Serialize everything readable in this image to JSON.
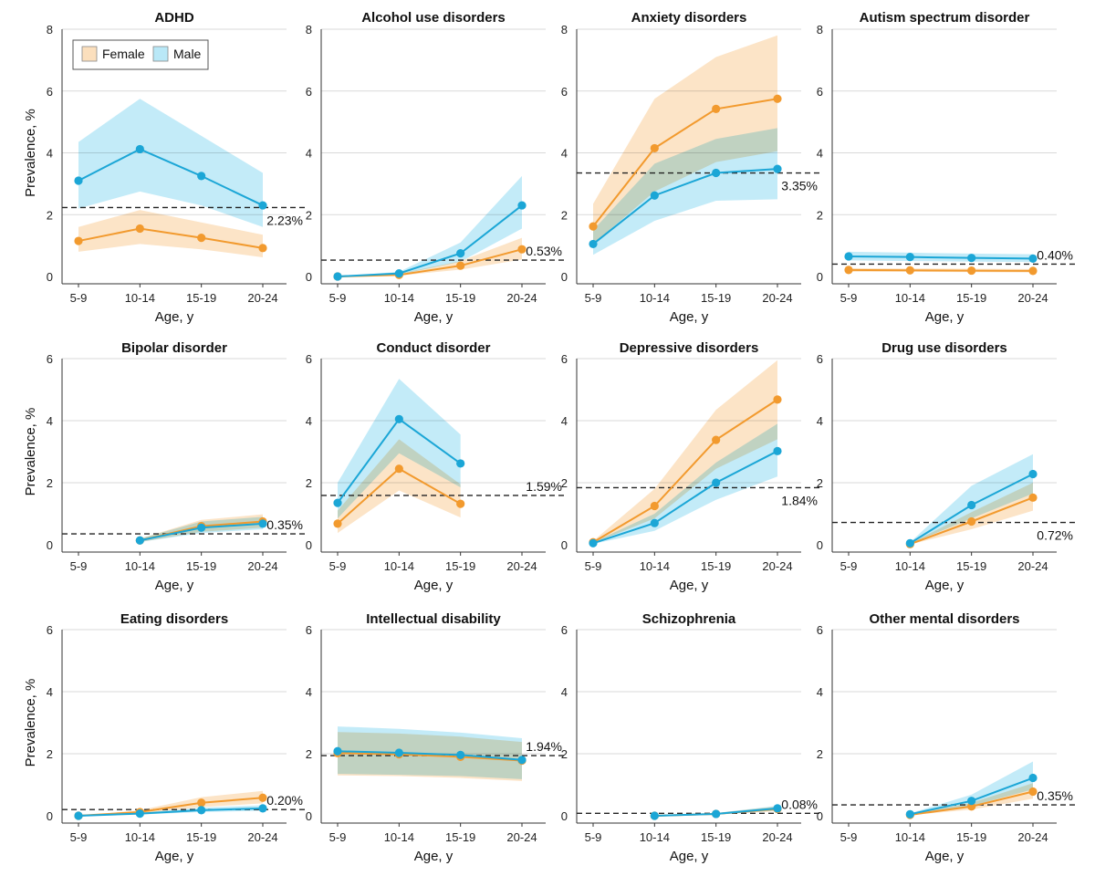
{
  "figure": {
    "legend": [
      {
        "name": "Female",
        "color": "#f29a2e",
        "band": "#fbdfbd"
      },
      {
        "name": "Male",
        "color": "#1ba6d6",
        "band": "#b9e8f7"
      }
    ],
    "ylabel": "Prevalence, %",
    "xlabel": "Age, y"
  },
  "chart_data": [
    {
      "type": "line",
      "title": "ADHD",
      "categories": [
        "5-9",
        "10-14",
        "15-19",
        "20-24"
      ],
      "ylim": [
        0,
        8
      ],
      "yticks": [
        0,
        2,
        4,
        6,
        8
      ],
      "xlabel": "Age, y",
      "ylabel": "Prevalence, %",
      "reference": {
        "value": 2.23,
        "label": "2.23%",
        "label_pos": "below"
      },
      "series": [
        {
          "name": "Female",
          "values": [
            1.15,
            1.55,
            1.25,
            0.92
          ],
          "lower": [
            0.8,
            1.05,
            0.88,
            0.62
          ],
          "upper": [
            1.6,
            2.15,
            1.75,
            1.35
          ]
        },
        {
          "name": "Male",
          "values": [
            3.1,
            4.12,
            3.25,
            2.3
          ],
          "lower": [
            2.2,
            2.75,
            2.3,
            1.6
          ],
          "upper": [
            4.35,
            5.75,
            4.55,
            3.35
          ]
        }
      ]
    },
    {
      "type": "line",
      "title": "Alcohol use disorders",
      "categories": [
        "5-9",
        "10-14",
        "15-19",
        "20-24"
      ],
      "ylim": [
        0,
        8
      ],
      "yticks": [
        0,
        2,
        4,
        6,
        8
      ],
      "xlabel": "Age, y",
      "reference": {
        "value": 0.53,
        "label": "0.53%",
        "label_pos": "above"
      },
      "series": [
        {
          "name": "Female",
          "values": [
            0.0,
            0.05,
            0.35,
            0.88
          ],
          "lower": [
            0.0,
            0.03,
            0.22,
            0.55
          ],
          "upper": [
            0.0,
            0.09,
            0.5,
            1.25
          ]
        },
        {
          "name": "Male",
          "values": [
            0.0,
            0.1,
            0.75,
            2.3
          ],
          "lower": [
            0.0,
            0.06,
            0.48,
            1.55
          ],
          "upper": [
            0.0,
            0.15,
            1.1,
            3.25
          ]
        }
      ]
    },
    {
      "type": "line",
      "title": "Anxiety disorders",
      "categories": [
        "5-9",
        "10-14",
        "15-19",
        "20-24"
      ],
      "ylim": [
        0,
        8
      ],
      "yticks": [
        0,
        2,
        4,
        6,
        8
      ],
      "xlabel": "Age, y",
      "reference": {
        "value": 3.35,
        "label": "3.35%",
        "label_pos": "below"
      },
      "series": [
        {
          "name": "Female",
          "values": [
            1.62,
            4.15,
            5.42,
            5.75
          ],
          "lower": [
            1.05,
            2.75,
            3.7,
            4.05
          ],
          "upper": [
            2.35,
            5.75,
            7.1,
            7.8
          ]
        },
        {
          "name": "Male",
          "values": [
            1.05,
            2.62,
            3.35,
            3.48
          ],
          "lower": [
            0.7,
            1.8,
            2.45,
            2.5
          ],
          "upper": [
            1.5,
            3.65,
            4.45,
            4.8
          ]
        }
      ]
    },
    {
      "type": "line",
      "title": "Autism spectrum disorder",
      "categories": [
        "5-9",
        "10-14",
        "15-19",
        "20-24"
      ],
      "ylim": [
        0,
        8
      ],
      "yticks": [
        0,
        2,
        4,
        6,
        8
      ],
      "xlabel": "Age, y",
      "reference": {
        "value": 0.4,
        "label": "0.40%",
        "label_pos": "above"
      },
      "series": [
        {
          "name": "Female",
          "values": [
            0.21,
            0.2,
            0.19,
            0.18
          ],
          "lower": [
            0.15,
            0.15,
            0.14,
            0.13
          ],
          "upper": [
            0.27,
            0.26,
            0.25,
            0.24
          ]
        },
        {
          "name": "Male",
          "values": [
            0.65,
            0.63,
            0.6,
            0.58
          ],
          "lower": [
            0.52,
            0.5,
            0.48,
            0.47
          ],
          "upper": [
            0.8,
            0.77,
            0.74,
            0.72
          ]
        }
      ]
    },
    {
      "type": "line",
      "title": "Bipolar disorder",
      "categories": [
        "5-9",
        "10-14",
        "15-19",
        "20-24"
      ],
      "ylim": [
        0,
        6
      ],
      "yticks": [
        0,
        2,
        4,
        6
      ],
      "xlabel": "Age, y",
      "ylabel": "Prevalence, %",
      "reference": {
        "value": 0.35,
        "label": "0.35%",
        "label_pos": "above"
      },
      "series": [
        {
          "name": "Female",
          "values": [
            null,
            0.14,
            0.6,
            0.75
          ],
          "lower": [
            null,
            0.09,
            0.42,
            0.55
          ],
          "upper": [
            null,
            0.2,
            0.8,
            0.98
          ]
        },
        {
          "name": "Male",
          "values": [
            null,
            0.14,
            0.55,
            0.68
          ],
          "lower": [
            null,
            0.09,
            0.38,
            0.5
          ],
          "upper": [
            null,
            0.2,
            0.75,
            0.9
          ]
        }
      ]
    },
    {
      "type": "line",
      "title": "Conduct disorder",
      "categories": [
        "5-9",
        "10-14",
        "15-19",
        "20-24"
      ],
      "ylim": [
        0,
        6
      ],
      "yticks": [
        0,
        2,
        4,
        6
      ],
      "xlabel": "Age, y",
      "reference": {
        "value": 1.59,
        "label": "1.59%",
        "label_pos": "above"
      },
      "series": [
        {
          "name": "Female",
          "values": [
            0.68,
            2.45,
            1.32,
            null
          ],
          "lower": [
            0.38,
            1.75,
            0.88,
            null
          ],
          "upper": [
            1.1,
            3.4,
            1.95,
            null
          ]
        },
        {
          "name": "Male",
          "values": [
            1.35,
            4.05,
            2.62,
            null
          ],
          "lower": [
            0.85,
            2.95,
            1.85,
            null
          ],
          "upper": [
            2.0,
            5.35,
            3.55,
            null
          ]
        }
      ]
    },
    {
      "type": "line",
      "title": "Depressive disorders",
      "categories": [
        "5-9",
        "10-14",
        "15-19",
        "20-24"
      ],
      "ylim": [
        0,
        6
      ],
      "yticks": [
        0,
        2,
        4,
        6
      ],
      "xlabel": "Age, y",
      "reference": {
        "value": 1.84,
        "label": "1.84%",
        "label_pos": "below"
      },
      "series": [
        {
          "name": "Female",
          "values": [
            0.08,
            1.25,
            3.38,
            4.68
          ],
          "lower": [
            0.05,
            0.85,
            2.45,
            3.4
          ],
          "upper": [
            0.12,
            1.8,
            4.35,
            5.95
          ]
        },
        {
          "name": "Male",
          "values": [
            0.05,
            0.7,
            2.0,
            3.02
          ],
          "lower": [
            0.03,
            0.45,
            1.45,
            2.2
          ],
          "upper": [
            0.08,
            1.0,
            2.65,
            3.9
          ]
        }
      ]
    },
    {
      "type": "line",
      "title": "Drug use disorders",
      "categories": [
        "5-9",
        "10-14",
        "15-19",
        "20-24"
      ],
      "ylim": [
        0,
        6
      ],
      "yticks": [
        0,
        2,
        4,
        6
      ],
      "xlabel": "Age, y",
      "reference": {
        "value": 0.72,
        "label": "0.72%",
        "label_pos": "below"
      },
      "series": [
        {
          "name": "Female",
          "values": [
            null,
            0.02,
            0.75,
            1.52
          ],
          "lower": [
            null,
            0.01,
            0.5,
            1.1
          ],
          "upper": [
            null,
            0.04,
            1.05,
            2.0
          ]
        },
        {
          "name": "Male",
          "values": [
            null,
            0.05,
            1.28,
            2.28
          ],
          "lower": [
            null,
            0.03,
            0.85,
            1.65
          ],
          "upper": [
            null,
            0.08,
            1.9,
            2.92
          ]
        }
      ]
    },
    {
      "type": "line",
      "title": "Eating disorders",
      "categories": [
        "5-9",
        "10-14",
        "15-19",
        "20-24"
      ],
      "ylim": [
        0,
        6
      ],
      "yticks": [
        0,
        2,
        4,
        6
      ],
      "xlabel": "Age, y",
      "ylabel": "Prevalence, %",
      "reference": {
        "value": 0.2,
        "label": "0.20%",
        "label_pos": "above"
      },
      "series": [
        {
          "name": "Female",
          "values": [
            0.0,
            0.12,
            0.42,
            0.58
          ],
          "lower": [
            0.0,
            0.08,
            0.28,
            0.4
          ],
          "upper": [
            0.0,
            0.18,
            0.6,
            0.8
          ]
        },
        {
          "name": "Male",
          "values": [
            0.0,
            0.07,
            0.18,
            0.24
          ],
          "lower": [
            0.0,
            0.04,
            0.12,
            0.16
          ],
          "upper": [
            0.0,
            0.1,
            0.26,
            0.34
          ]
        }
      ]
    },
    {
      "type": "line",
      "title": "Intellectual disability",
      "categories": [
        "5-9",
        "10-14",
        "15-19",
        "20-24"
      ],
      "ylim": [
        0,
        6
      ],
      "yticks": [
        0,
        2,
        4,
        6
      ],
      "xlabel": "Age, y",
      "reference": {
        "value": 1.94,
        "label": "1.94%",
        "label_pos": "above"
      },
      "series": [
        {
          "name": "Female",
          "values": [
            2.02,
            1.98,
            1.9,
            1.78
          ],
          "lower": [
            1.3,
            1.28,
            1.22,
            1.12
          ],
          "upper": [
            2.7,
            2.65,
            2.55,
            2.38
          ]
        },
        {
          "name": "Male",
          "values": [
            2.08,
            2.03,
            1.96,
            1.8
          ],
          "lower": [
            1.35,
            1.32,
            1.28,
            1.18
          ],
          "upper": [
            2.88,
            2.8,
            2.68,
            2.5
          ]
        }
      ]
    },
    {
      "type": "line",
      "title": "Schizophrenia",
      "categories": [
        "5-9",
        "10-14",
        "15-19",
        "20-24"
      ],
      "ylim": [
        0,
        6
      ],
      "yticks": [
        0,
        2,
        4,
        6
      ],
      "xlabel": "Age, y",
      "reference": {
        "value": 0.08,
        "label": "0.08%",
        "label_pos": "above"
      },
      "series": [
        {
          "name": "Female",
          "values": [
            null,
            0.0,
            0.06,
            0.22
          ],
          "lower": [
            null,
            0.0,
            0.04,
            0.15
          ],
          "upper": [
            null,
            0.0,
            0.09,
            0.3
          ]
        },
        {
          "name": "Male",
          "values": [
            null,
            0.0,
            0.06,
            0.24
          ],
          "lower": [
            null,
            0.0,
            0.04,
            0.17
          ],
          "upper": [
            null,
            0.0,
            0.09,
            0.32
          ]
        }
      ]
    },
    {
      "type": "line",
      "title": "Other mental disorders",
      "categories": [
        "5-9",
        "10-14",
        "15-19",
        "20-24"
      ],
      "ylim": [
        0,
        6
      ],
      "yticks": [
        0,
        2,
        4,
        6
      ],
      "xlabel": "Age, y",
      "reference": {
        "value": 0.35,
        "label": "0.35%",
        "label_pos": "above"
      },
      "series": [
        {
          "name": "Female",
          "values": [
            null,
            0.03,
            0.3,
            0.78
          ],
          "lower": [
            null,
            0.02,
            0.2,
            0.55
          ],
          "upper": [
            null,
            0.05,
            0.42,
            1.05
          ]
        },
        {
          "name": "Male",
          "values": [
            null,
            0.05,
            0.48,
            1.22
          ],
          "lower": [
            null,
            0.03,
            0.32,
            0.85
          ],
          "upper": [
            null,
            0.08,
            0.68,
            1.75
          ]
        }
      ]
    }
  ]
}
